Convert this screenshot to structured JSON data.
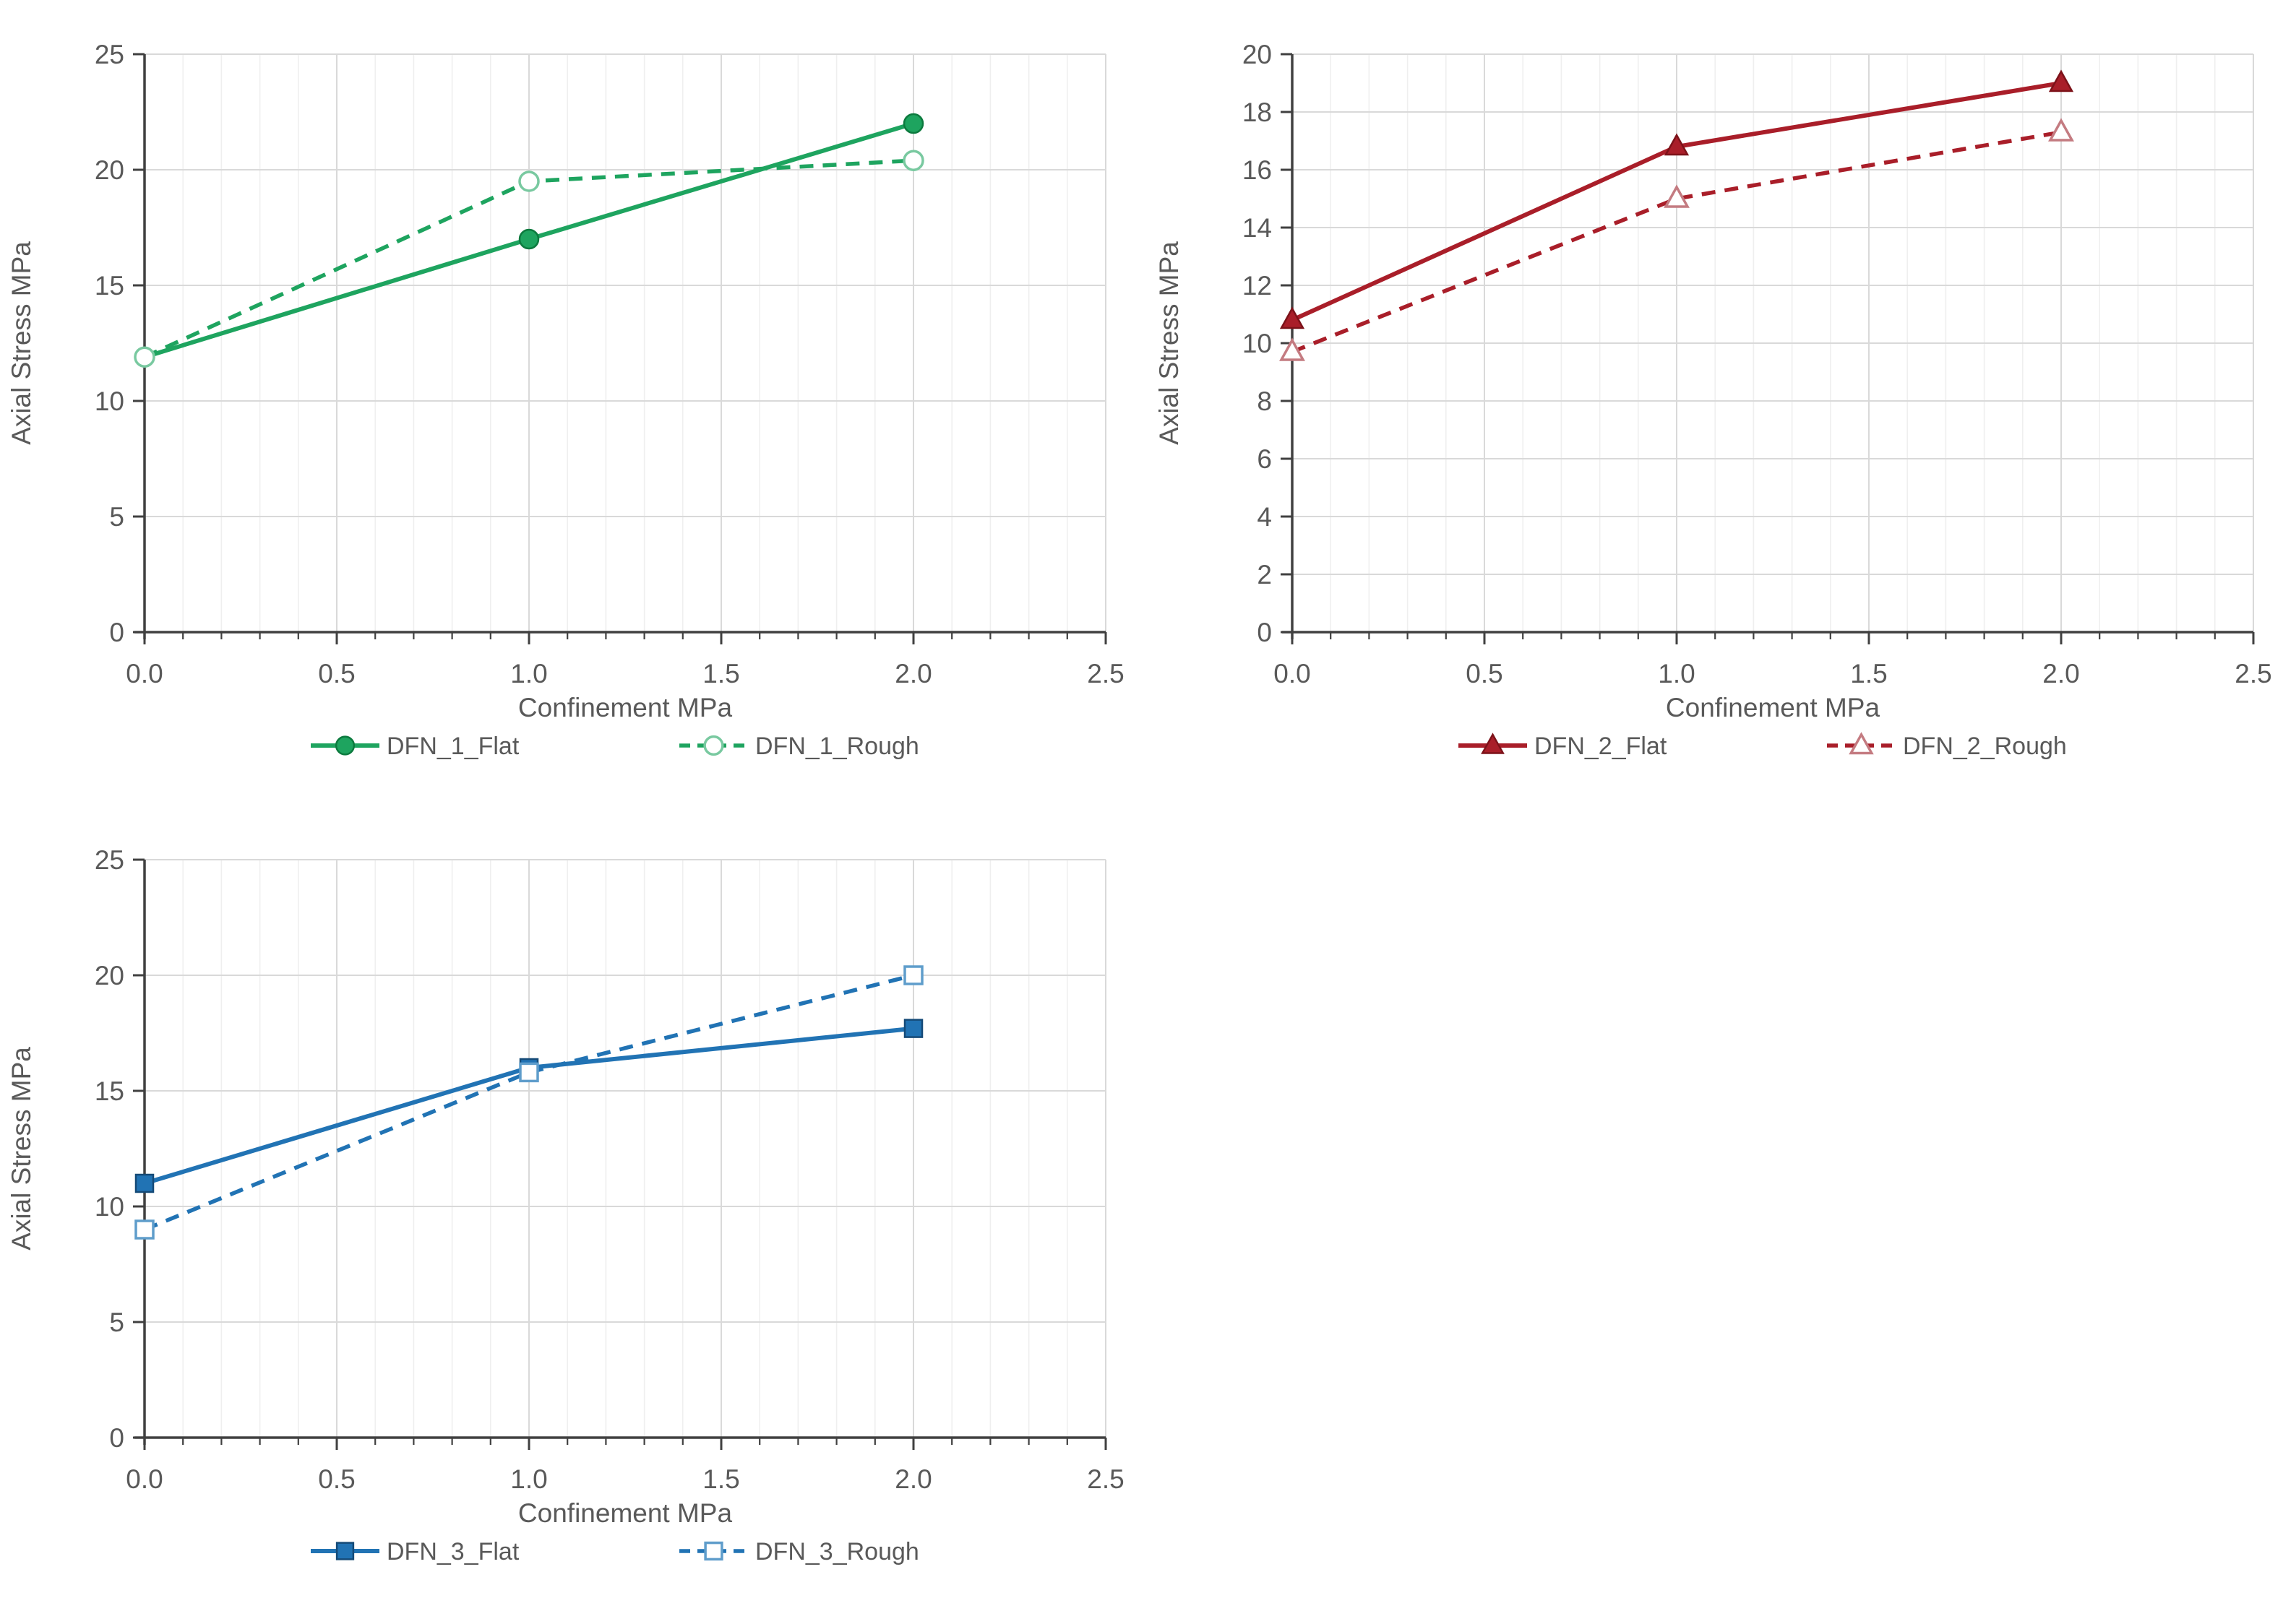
{
  "style": {
    "background": "#ffffff",
    "text_color": "#595959",
    "axis_color": "#404040",
    "grid_major_color": "#d9d9d9",
    "grid_minor_color": "#efefef"
  },
  "chart_data": [
    {
      "type": "line",
      "xlabel": "Confinement MPa",
      "ylabel": "Axial Stress MPa",
      "x": [
        0,
        1,
        2
      ],
      "xlim": [
        0,
        2.5
      ],
      "ylim": [
        0,
        25
      ],
      "x_major": 0.5,
      "x_minor": 0.1,
      "y_major": 5,
      "x_tick_labels": [
        "0.0",
        "0.5",
        "1.0",
        "1.5",
        "2.0",
        "2.5"
      ],
      "y_tick_labels": [
        "0",
        "5",
        "10",
        "15",
        "20",
        "25"
      ],
      "grid": true,
      "legend_position": "bottom",
      "series": [
        {
          "name": "DFN_1_Flat",
          "values": [
            11.9,
            17.0,
            22.0
          ],
          "line": "solid",
          "marker": "circle",
          "marker_fill": "filled",
          "color": "#1ea45f",
          "marker_edge": "#0c7a3e"
        },
        {
          "name": "DFN_1_Rough",
          "values": [
            11.9,
            19.5,
            20.4
          ],
          "line": "dashed",
          "marker": "circle",
          "marker_fill": "open",
          "color": "#1ea45f",
          "marker_edge": "#79c9a0"
        }
      ]
    },
    {
      "type": "line",
      "xlabel": "Confinement MPa",
      "ylabel": "Axial Stress MPa",
      "x": [
        0,
        1,
        2
      ],
      "xlim": [
        0,
        2.5
      ],
      "ylim": [
        0,
        20
      ],
      "x_major": 0.5,
      "x_minor": 0.1,
      "y_major": 2,
      "x_tick_labels": [
        "0.0",
        "0.5",
        "1.0",
        "1.5",
        "2.0",
        "2.5"
      ],
      "y_tick_labels": [
        "0",
        "2",
        "4",
        "6",
        "8",
        "10",
        "12",
        "14",
        "16",
        "18",
        "20"
      ],
      "grid": true,
      "legend_position": "bottom",
      "series": [
        {
          "name": "DFN_2_Flat",
          "values": [
            10.8,
            16.8,
            19.0
          ],
          "line": "solid",
          "marker": "triangle",
          "marker_fill": "filled",
          "color": "#a91e29",
          "marker_edge": "#7c1219"
        },
        {
          "name": "DFN_2_Rough",
          "values": [
            9.7,
            15.0,
            17.3
          ],
          "line": "dashed",
          "marker": "triangle",
          "marker_fill": "open",
          "color": "#a91e29",
          "marker_edge": "#c47b81"
        }
      ]
    },
    {
      "type": "line",
      "xlabel": "Confinement MPa",
      "ylabel": "Axial Stress MPa",
      "x": [
        0,
        1,
        2
      ],
      "xlim": [
        0,
        2.5
      ],
      "ylim": [
        0,
        25
      ],
      "x_major": 0.5,
      "x_minor": 0.1,
      "y_major": 5,
      "x_tick_labels": [
        "0.0",
        "0.5",
        "1.0",
        "1.5",
        "2.0",
        "2.5"
      ],
      "y_tick_labels": [
        "0",
        "5",
        "10",
        "15",
        "20",
        "25"
      ],
      "grid": true,
      "legend_position": "bottom",
      "series": [
        {
          "name": "DFN_3_Flat",
          "values": [
            11.0,
            16.0,
            17.7
          ],
          "line": "solid",
          "marker": "square",
          "marker_fill": "filled",
          "color": "#2173b4",
          "marker_edge": "#154a77"
        },
        {
          "name": "DFN_3_Rough",
          "values": [
            9.0,
            15.8,
            20.0
          ],
          "line": "dashed",
          "marker": "square",
          "marker_fill": "open",
          "color": "#2173b4",
          "marker_edge": "#5f9dcb"
        }
      ]
    }
  ]
}
